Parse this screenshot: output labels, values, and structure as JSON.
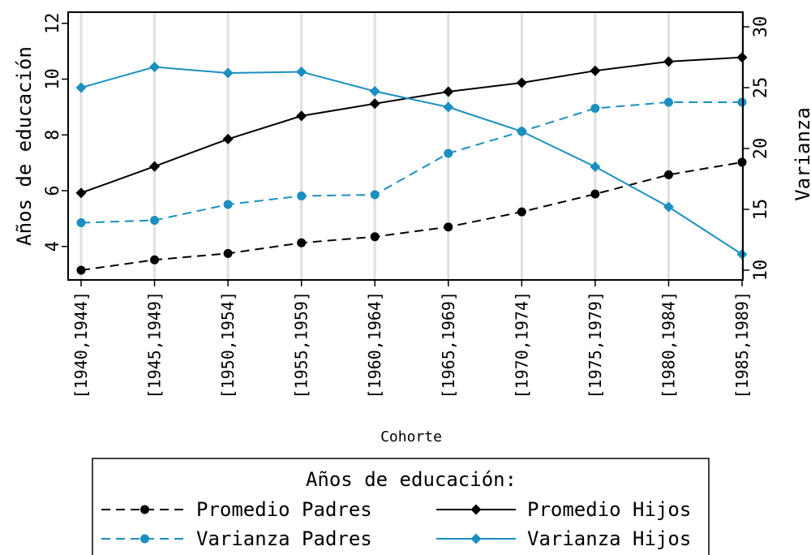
{
  "chart_data": {
    "type": "line",
    "xlabel": "Cohorte",
    "ylabel_left": "Años de educación",
    "ylabel_right": "Varianza",
    "categories": [
      "[1940,1944]",
      "[1945,1949]",
      "[1950,1954]",
      "[1955,1959]",
      "[1960,1964]",
      "[1965,1969]",
      "[1970,1974]",
      "[1975,1979]",
      "[1980,1984]",
      "[1985,1989]"
    ],
    "ylim_left": [
      2.8,
      12.4
    ],
    "yticks_left": [
      4,
      6,
      8,
      10,
      12
    ],
    "ylim_right": [
      9.2,
      31.2
    ],
    "yticks_right": [
      10,
      15,
      20,
      25,
      30
    ],
    "grid": "vertical",
    "legend": {
      "title": "Años de educación:",
      "position": "bottom"
    },
    "series": [
      {
        "name": "Promedio Padres",
        "axis": "left",
        "color": "#000000",
        "dashed": true,
        "marker": "circle",
        "values": [
          3.15,
          3.52,
          3.75,
          4.13,
          4.35,
          4.7,
          5.24,
          5.88,
          6.57,
          7.02
        ]
      },
      {
        "name": "Promedio Hijos",
        "axis": "left",
        "color": "#000000",
        "dashed": false,
        "marker": "diamond",
        "values": [
          5.92,
          6.87,
          7.85,
          8.68,
          9.12,
          9.55,
          9.87,
          10.3,
          10.63,
          10.78
        ]
      },
      {
        "name": "Varianza Padres",
        "axis": "right",
        "color": "#1a8fc1",
        "dashed": true,
        "marker": "circle",
        "values": [
          13.9,
          14.1,
          15.4,
          16.1,
          16.2,
          19.6,
          21.4,
          23.3,
          23.8,
          23.8
        ]
      },
      {
        "name": "Varianza Hijos",
        "axis": "right",
        "color": "#1a8fc1",
        "dashed": false,
        "marker": "diamond",
        "values": [
          25.0,
          26.7,
          26.2,
          26.3,
          24.7,
          23.4,
          21.4,
          18.5,
          15.2,
          11.3
        ]
      }
    ]
  }
}
